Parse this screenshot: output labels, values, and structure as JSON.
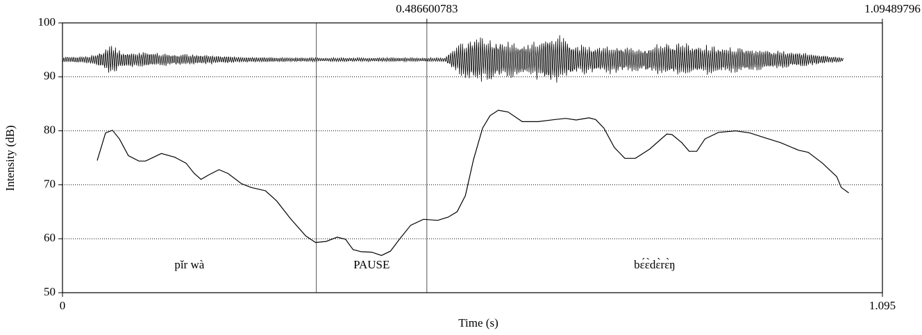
{
  "chart_data": {
    "type": "line",
    "xlabel": "Time (s)",
    "ylabel": "Intensity (dB)",
    "xlim": [
      0,
      1.095
    ],
    "xticks": [
      0,
      1.095
    ],
    "ylim": [
      50,
      100
    ],
    "yticks": [
      50,
      60,
      70,
      80,
      90,
      100
    ],
    "grid": true,
    "top_markers": [
      0.486600783,
      1.09489796
    ],
    "boundaries": [
      0.339,
      0.486600783
    ],
    "intervals": [
      {
        "label": "pǐr wà",
        "start": 0,
        "end": 0.339
      },
      {
        "label": "PAUSE",
        "start": 0.339,
        "end": 0.486600783
      },
      {
        "label": "bɛ́ɛ̀dɛ̀rɛ̀ŋ",
        "start": 0.486600783,
        "end": 1.095
      }
    ],
    "series": [
      {
        "color": "#000000",
        "x": [
          0.0464,
          0.0575,
          0.0668,
          0.076,
          0.088,
          0.102,
          0.111,
          0.132,
          0.15,
          0.165,
          0.176,
          0.185,
          0.195,
          0.209,
          0.221,
          0.239,
          0.252,
          0.271,
          0.286,
          0.304,
          0.325,
          0.338,
          0.352,
          0.367,
          0.378,
          0.388,
          0.399,
          0.413,
          0.426,
          0.438,
          0.45,
          0.465,
          0.482,
          0.501,
          0.515,
          0.527,
          0.538,
          0.549,
          0.561,
          0.571,
          0.582,
          0.595,
          0.614,
          0.635,
          0.658,
          0.672,
          0.686,
          0.703,
          0.712,
          0.723,
          0.737,
          0.751,
          0.765,
          0.784,
          0.807,
          0.814,
          0.827,
          0.837,
          0.847,
          0.858,
          0.876,
          0.899,
          0.918,
          0.936,
          0.959,
          0.983,
          0.996,
          1.015,
          1.034,
          1.04,
          1.05
        ],
        "values": [
          74.5,
          79.6,
          80.1,
          78.5,
          75.4,
          74.4,
          74.4,
          75.8,
          75.1,
          74.0,
          72.1,
          71.0,
          71.8,
          72.8,
          72.1,
          70.2,
          69.5,
          68.9,
          67.0,
          63.8,
          60.5,
          59.3,
          59.5,
          60.3,
          59.9,
          58.0,
          57.6,
          57.5,
          56.9,
          57.7,
          59.9,
          62.5,
          63.6,
          63.4,
          64.0,
          65.0,
          68.0,
          74.7,
          80.5,
          82.8,
          83.8,
          83.5,
          81.7,
          81.7,
          82.1,
          82.3,
          82.0,
          82.4,
          82.1,
          80.5,
          76.9,
          74.9,
          74.9,
          76.6,
          79.4,
          79.3,
          77.8,
          76.2,
          76.2,
          78.5,
          79.7,
          80.0,
          79.6,
          78.8,
          77.8,
          76.4,
          76.0,
          74.0,
          71.5,
          69.5,
          68.5
        ]
      }
    ]
  }
}
